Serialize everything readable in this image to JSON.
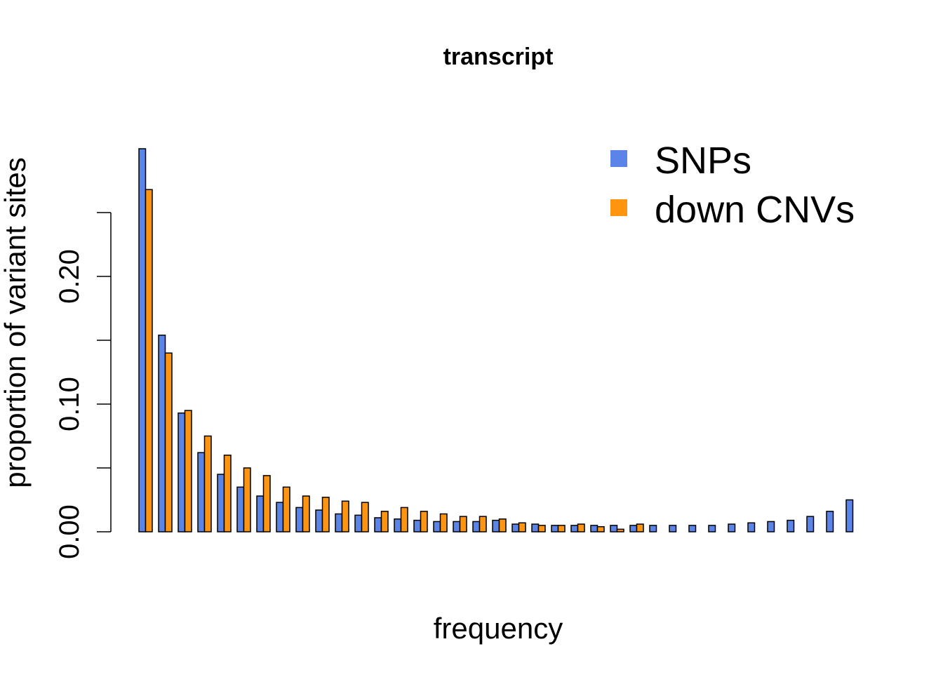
{
  "chart_data": {
    "type": "bar",
    "title": "transcript",
    "xlabel": "frequency",
    "ylabel": "proportion of variant sites",
    "ylim": [
      0,
      0.3
    ],
    "yticks": [
      0.0,
      0.05,
      0.1,
      0.15,
      0.2,
      0.25
    ],
    "yticks_labels": [
      "0.00",
      "",
      "0.10",
      "",
      "0.20",
      ""
    ],
    "grid": false,
    "legend_position": "top-right",
    "series": [
      {
        "name": "SNPs",
        "color": "#5b84e8",
        "values": [
          0.3,
          0.154,
          0.093,
          0.062,
          0.045,
          0.035,
          0.028,
          0.023,
          0.019,
          0.017,
          0.014,
          0.013,
          0.011,
          0.01,
          0.009,
          0.008,
          0.008,
          0.008,
          0.009,
          0.006,
          0.006,
          0.005,
          0.005,
          0.005,
          0.005,
          0.005,
          0.005,
          0.005,
          0.005,
          0.005,
          0.006,
          0.007,
          0.008,
          0.009,
          0.012,
          0.016,
          0.025
        ]
      },
      {
        "name": "down CNVs",
        "color": "#ff9410",
        "values": [
          0.268,
          0.14,
          0.095,
          0.075,
          0.06,
          0.05,
          0.044,
          0.035,
          0.028,
          0.027,
          0.024,
          0.023,
          0.016,
          0.019,
          0.016,
          0.014,
          0.012,
          0.012,
          0.01,
          0.007,
          0.005,
          0.005,
          0.006,
          0.004,
          0.002,
          0.006,
          0.0,
          0.0,
          0.0,
          0.0,
          0.0,
          0.0,
          0.0,
          0.0,
          0.0,
          0.0,
          0.0
        ]
      }
    ]
  }
}
